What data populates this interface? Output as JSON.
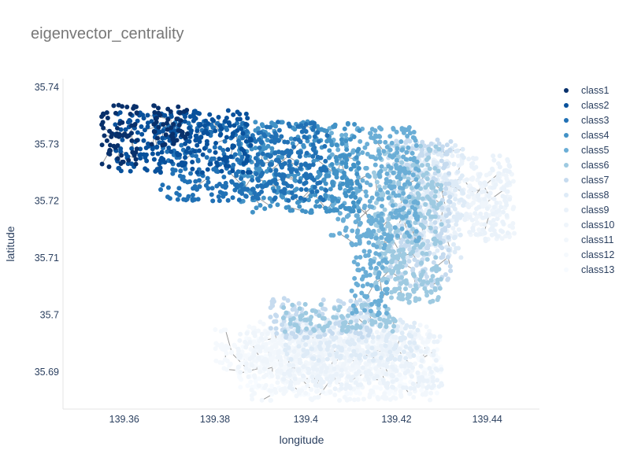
{
  "chart_data": {
    "type": "scatter",
    "title": "eigenvector_centrality",
    "xlabel": "longitude",
    "ylabel": "latitude",
    "xlim": [
      139.3465,
      139.4515
    ],
    "ylim": [
      35.6835,
      35.7415
    ],
    "x_ticks": [
      {
        "value": 139.36,
        "label": "139.36"
      },
      {
        "value": 139.38,
        "label": "139.38"
      },
      {
        "value": 139.4,
        "label": "139.4"
      },
      {
        "value": 139.42,
        "label": "139.42"
      },
      {
        "value": 139.44,
        "label": "139.44"
      }
    ],
    "y_ticks": [
      {
        "value": 35.69,
        "label": "35.69"
      },
      {
        "value": 35.7,
        "label": "35.7"
      },
      {
        "value": 35.71,
        "label": "35.71"
      },
      {
        "value": 35.72,
        "label": "35.72"
      },
      {
        "value": 35.73,
        "label": "35.73"
      },
      {
        "value": 35.74,
        "label": "35.74"
      }
    ],
    "grid": false,
    "legend_position": "right",
    "edge_color": "#999999",
    "series": [
      {
        "name": "class1",
        "color": "#08306b",
        "regions": [
          {
            "x": [
              139.355,
              139.363
            ],
            "y": [
              35.726,
              35.737
            ]
          },
          {
            "x": [
              139.366,
              139.374
            ],
            "y": [
              35.729,
              35.737
            ]
          }
        ]
      },
      {
        "name": "class2",
        "color": "#08519c",
        "regions": [
          {
            "x": [
              139.358,
              139.388
            ],
            "y": [
              35.725,
              35.736
            ]
          }
        ]
      },
      {
        "name": "class3",
        "color": "#2171b5",
        "regions": [
          {
            "x": [
              139.368,
              139.405
            ],
            "y": [
              35.72,
              35.734
            ]
          }
        ]
      },
      {
        "name": "class4",
        "color": "#4292c6",
        "regions": [
          {
            "x": [
              139.385,
              139.412
            ],
            "y": [
              35.718,
              35.734
            ]
          }
        ]
      },
      {
        "name": "class5",
        "color": "#6baed6",
        "regions": [
          {
            "x": [
              139.405,
              139.425
            ],
            "y": [
              35.713,
              35.733
            ]
          },
          {
            "x": [
              139.41,
              139.418
            ],
            "y": [
              35.7,
              35.714
            ]
          }
        ]
      },
      {
        "name": "class6",
        "color": "#9ecae1",
        "regions": [
          {
            "x": [
              139.415,
              139.43
            ],
            "y": [
              35.702,
              35.73
            ]
          },
          {
            "x": [
              139.395,
              139.42
            ],
            "y": [
              35.697,
              35.702
            ]
          }
        ]
      },
      {
        "name": "class7",
        "color": "#c6dbef",
        "regions": [
          {
            "x": [
              139.418,
              139.432
            ],
            "y": [
              35.705,
              35.731
            ]
          },
          {
            "x": [
              139.392,
              139.415
            ],
            "y": [
              35.696,
              35.703
            ]
          }
        ]
      },
      {
        "name": "class8",
        "color": "#deebf7",
        "regions": [
          {
            "x": [
              139.42,
              139.435
            ],
            "y": [
              35.71,
              35.73
            ]
          },
          {
            "x": [
              139.395,
              139.425
            ],
            "y": [
              35.692,
              35.7
            ]
          }
        ]
      },
      {
        "name": "class9",
        "color": "#eaf2fa",
        "regions": [
          {
            "x": [
              139.425,
              139.445
            ],
            "y": [
              35.713,
              35.728
            ]
          },
          {
            "x": [
              139.395,
              139.43
            ],
            "y": [
              35.687,
              35.697
            ]
          }
        ]
      },
      {
        "name": "class10",
        "color": "#eff5fb",
        "regions": [
          {
            "x": [
              139.435,
              139.446
            ],
            "y": [
              35.713,
              35.725
            ]
          },
          {
            "x": [
              139.385,
              139.42
            ],
            "y": [
              35.689,
              35.697
            ]
          }
        ]
      },
      {
        "name": "class11",
        "color": "#f2f7fc",
        "regions": [
          {
            "x": [
              139.388,
              139.428
            ],
            "y": [
              35.685,
              35.699
            ]
          }
        ]
      },
      {
        "name": "class12",
        "color": "#f5f9fd",
        "regions": [
          {
            "x": [
              139.38,
              139.41
            ],
            "y": [
              35.69,
              35.698
            ]
          }
        ]
      },
      {
        "name": "class13",
        "color": "#f7fbff",
        "regions": [
          {
            "x": [
              139.385,
              139.43
            ],
            "y": [
              35.686,
              35.696
            ]
          }
        ]
      }
    ]
  }
}
